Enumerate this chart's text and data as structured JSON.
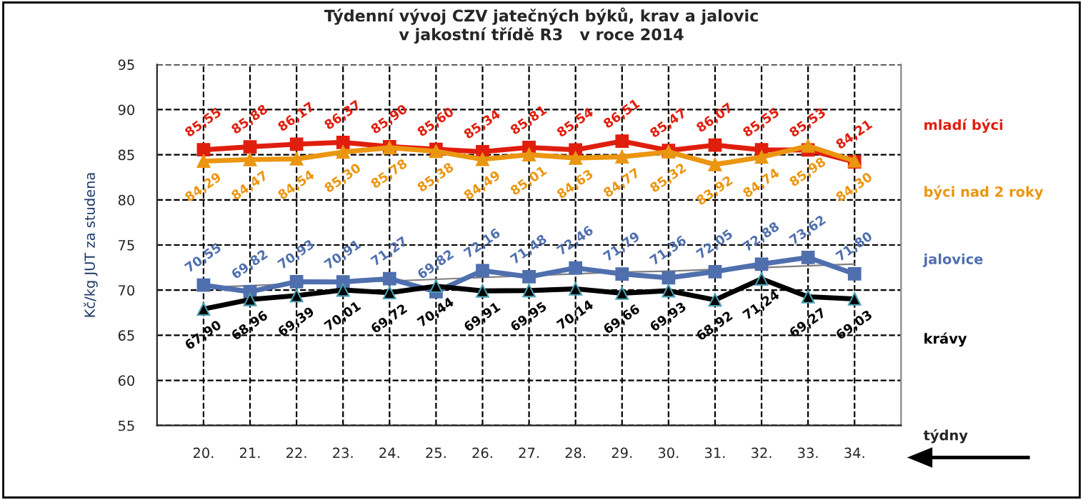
{
  "chart_data": {
    "type": "line",
    "title": "Týdenní vývoj CZV jatečných býků, krav a jalovic\nv jakostní třídě R3   v roce 2014",
    "ylabel": "Kč/kg JUT za studena",
    "xlabel": "týdny",
    "categories": [
      "20.",
      "21.",
      "22.",
      "23.",
      "24.",
      "25.",
      "26.",
      "27.",
      "28.",
      "29.",
      "30.",
      "31.",
      "32.",
      "33.",
      "34."
    ],
    "series": [
      {
        "name": "mladí býci",
        "color": "#e01e0e",
        "marker": "square",
        "values": [
          85.55,
          85.88,
          86.17,
          86.37,
          85.9,
          85.6,
          85.34,
          85.81,
          85.54,
          86.51,
          85.47,
          86.07,
          85.55,
          85.53,
          84.21
        ],
        "value_labels": [
          "85,55",
          "85,88",
          "86,17",
          "86,37",
          "85,90",
          "85,60",
          "85,34",
          "85,81",
          "85,54",
          "86,51",
          "85,47",
          "86,07",
          "85,55",
          "85,53",
          "84,21"
        ]
      },
      {
        "name": "býci nad 2 roky",
        "color": "#eb9610",
        "marker": "triangle",
        "values": [
          84.29,
          84.47,
          84.54,
          85.3,
          85.78,
          85.38,
          84.49,
          85.01,
          84.63,
          84.77,
          85.32,
          83.92,
          84.74,
          85.98,
          84.3
        ],
        "value_labels": [
          "84,29",
          "84,47",
          "84,54",
          "85,30",
          "85,78",
          "85,38",
          "84,49",
          "85,01",
          "84,63",
          "84,77",
          "85,32",
          "83,92",
          "84,74",
          "85,98",
          "84,30"
        ]
      },
      {
        "name": "jalovice",
        "color": "#4f6fae",
        "marker": "square",
        "values": [
          70.55,
          69.82,
          70.93,
          70.91,
          71.27,
          69.82,
          72.16,
          71.48,
          72.46,
          71.79,
          71.36,
          72.05,
          72.88,
          73.62,
          71.8
        ],
        "value_labels": [
          "70,55",
          "69,82",
          "70,93",
          "70,91",
          "71,27",
          "69,82",
          "72,16",
          "71,48",
          "72,46",
          "71,79",
          "71,36",
          "72,05",
          "72,88",
          "73,62",
          "71,80"
        ]
      },
      {
        "name": "krávy",
        "color": "#000000",
        "marker": "triangle",
        "values": [
          67.9,
          68.96,
          69.39,
          70.01,
          69.72,
          70.44,
          69.91,
          69.95,
          70.14,
          69.66,
          69.93,
          68.92,
          71.24,
          69.27,
          69.03
        ],
        "value_labels": [
          "67,90",
          "68,96",
          "69,39",
          "70,01",
          "69,72",
          "70,44",
          "69,91",
          "69,95",
          "70,14",
          "69,66",
          "69,93",
          "68,92",
          "71,24",
          "69,27",
          "69,03"
        ]
      },
      {
        "color": "#808080",
        "marker": "none",
        "values": [
          70.3,
          70.5,
          70.7,
          70.9,
          71.0,
          71.2,
          71.4,
          71.6,
          71.8,
          72.0,
          72.1,
          72.3,
          72.5,
          72.7,
          72.9
        ]
      }
    ],
    "ylim": [
      55,
      95
    ],
    "yticks": [
      55,
      60,
      65,
      70,
      75,
      80,
      85,
      90,
      95
    ],
    "grid": true,
    "legend": "right",
    "line_style": "solid"
  }
}
